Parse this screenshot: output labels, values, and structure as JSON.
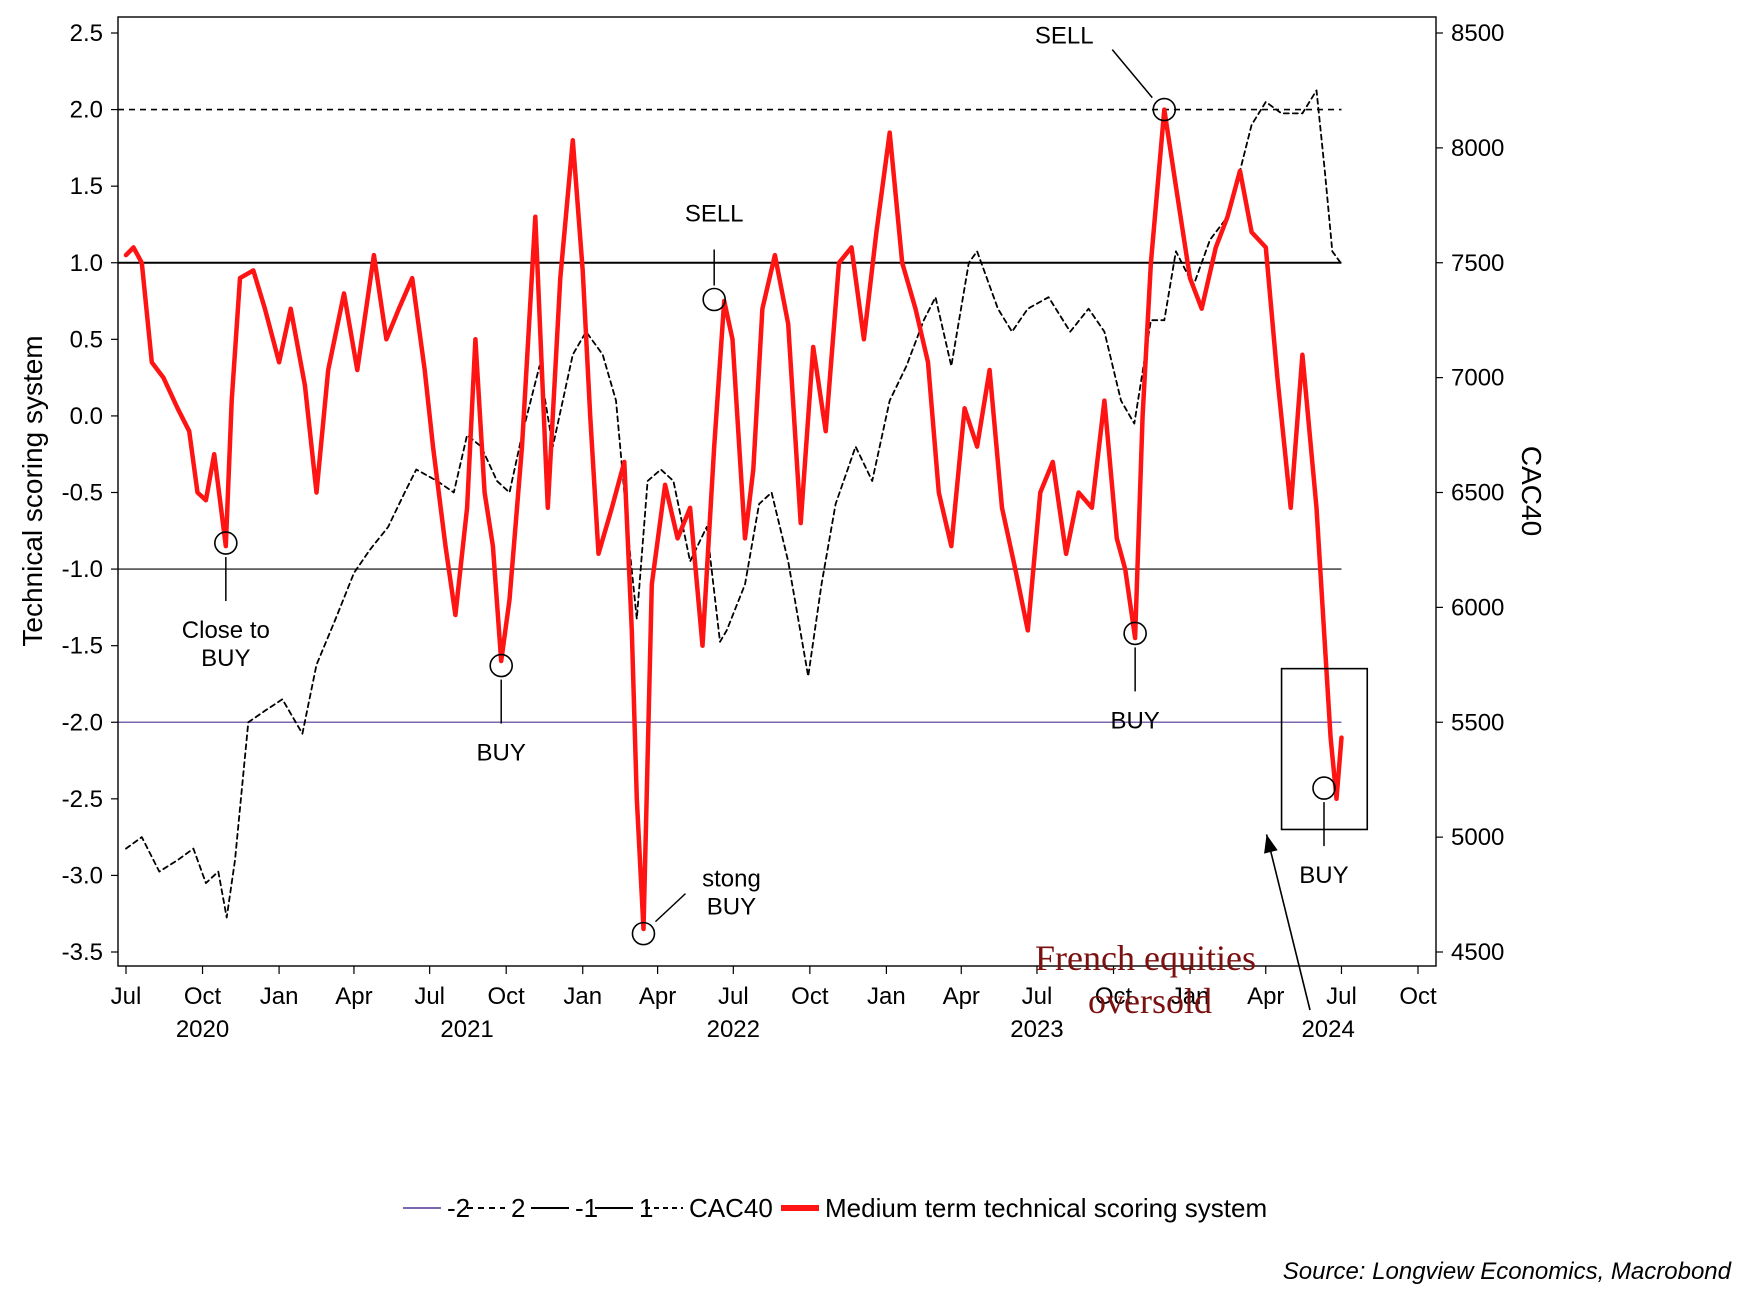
{
  "chart_data": {
    "type": "line",
    "ylabel": "Technical scoring system",
    "y2label": "CAC40",
    "source": "Source: Longview Economics, Macrobond",
    "callout": [
      "French equities",
      "oversold"
    ],
    "ylim": [
      -3.5,
      2.5
    ],
    "y2lim": [
      4500,
      8500
    ],
    "yticks": [
      "2.5",
      "2.0",
      "1.5",
      "1.0",
      "0.5",
      "0.0",
      "-0.5",
      "-1.0",
      "-1.5",
      "-2.0",
      "-2.5",
      "-3.0",
      "-3.5"
    ],
    "y2ticks": [
      "8500",
      "8000",
      "7500",
      "7000",
      "6500",
      "6000",
      "5500",
      "5000",
      "4500"
    ],
    "xlim": [
      "2020-07-01",
      "2024-10-01"
    ],
    "xticks": [
      {
        "date": "2020-07-01",
        "label": "Jul"
      },
      {
        "date": "2020-10-01",
        "label": "Oct"
      },
      {
        "date": "2021-01-01",
        "label": "Jan"
      },
      {
        "date": "2021-04-01",
        "label": "Apr"
      },
      {
        "date": "2021-07-01",
        "label": "Jul"
      },
      {
        "date": "2021-10-01",
        "label": "Oct"
      },
      {
        "date": "2022-01-01",
        "label": "Jan"
      },
      {
        "date": "2022-04-01",
        "label": "Apr"
      },
      {
        "date": "2022-07-01",
        "label": "Jul"
      },
      {
        "date": "2022-10-01",
        "label": "Oct"
      },
      {
        "date": "2023-01-01",
        "label": "Jan"
      },
      {
        "date": "2023-04-01",
        "label": "Apr"
      },
      {
        "date": "2023-07-01",
        "label": "Jul"
      },
      {
        "date": "2023-10-01",
        "label": "Oct"
      },
      {
        "date": "2024-01-01",
        "label": "Jan"
      },
      {
        "date": "2024-04-01",
        "label": "Apr"
      },
      {
        "date": "2024-07-01",
        "label": "Jul"
      },
      {
        "date": "2024-10-01",
        "label": "Oct"
      }
    ],
    "years": [
      {
        "date": "2020-10-01",
        "label": "2020"
      },
      {
        "date": "2021-08-15",
        "label": "2021"
      },
      {
        "date": "2022-07-01",
        "label": "2022"
      },
      {
        "date": "2023-07-01",
        "label": "2023"
      },
      {
        "date": "2024-06-15",
        "label": "2024"
      }
    ],
    "reference_lines": [
      {
        "name": "-2",
        "value": -2,
        "color": "#7b68b0",
        "dash": "",
        "width": 1.6
      },
      {
        "name": "2",
        "value": 2,
        "color": "#000000",
        "dash": "6,5",
        "width": 1.6
      },
      {
        "name": "-1",
        "value": -1,
        "color": "#000000",
        "dash": "",
        "width": 1.2
      },
      {
        "name": "1",
        "value": 1,
        "color": "#000000",
        "dash": "",
        "width": 2.0
      }
    ],
    "series": [
      {
        "name": "CAC40",
        "axis": "right",
        "color": "#000000",
        "dash": "5,4",
        "x": [
          "2020-07-01",
          "2020-07-20",
          "2020-08-10",
          "2020-09-01",
          "2020-09-20",
          "2020-10-05",
          "2020-10-20",
          "2020-10-30",
          "2020-11-09",
          "2020-11-25",
          "2020-12-15",
          "2021-01-05",
          "2021-01-29",
          "2021-02-15",
          "2021-03-10",
          "2021-04-01",
          "2021-04-20",
          "2021-05-12",
          "2021-06-01",
          "2021-06-15",
          "2021-07-10",
          "2021-07-30",
          "2021-08-15",
          "2021-09-01",
          "2021-09-20",
          "2021-10-05",
          "2021-10-20",
          "2021-11-10",
          "2021-11-26",
          "2021-12-20",
          "2022-01-05",
          "2022-01-25",
          "2022-02-10",
          "2022-02-25",
          "2022-03-07",
          "2022-03-20",
          "2022-04-05",
          "2022-04-20",
          "2022-05-10",
          "2022-05-30",
          "2022-06-15",
          "2022-06-23",
          "2022-07-15",
          "2022-08-01",
          "2022-08-16",
          "2022-09-05",
          "2022-09-29",
          "2022-10-15",
          "2022-11-01",
          "2022-11-25",
          "2022-12-15",
          "2023-01-05",
          "2023-01-25",
          "2023-02-15",
          "2023-03-01",
          "2023-03-20",
          "2023-04-10",
          "2023-04-20",
          "2023-05-15",
          "2023-06-01",
          "2023-06-20",
          "2023-07-15",
          "2023-08-10",
          "2023-09-01",
          "2023-09-20",
          "2023-10-10",
          "2023-10-26",
          "2023-11-15",
          "2023-12-01",
          "2023-12-15",
          "2024-01-05",
          "2024-01-25",
          "2024-02-15",
          "2024-03-01",
          "2024-03-15",
          "2024-04-01",
          "2024-04-20",
          "2024-05-15",
          "2024-06-01",
          "2024-06-11",
          "2024-06-20",
          "2024-06-30"
        ],
        "values": [
          4950,
          5000,
          4850,
          4900,
          4950,
          4800,
          4850,
          4650,
          4900,
          5500,
          5550,
          5600,
          5450,
          5750,
          5950,
          6150,
          6250,
          6350,
          6500,
          6600,
          6550,
          6500,
          6750,
          6700,
          6550,
          6500,
          6750,
          7050,
          6700,
          7100,
          7200,
          7100,
          6900,
          6300,
          5950,
          6550,
          6600,
          6550,
          6200,
          6350,
          5850,
          5900,
          6100,
          6450,
          6500,
          6200,
          5700,
          6100,
          6450,
          6700,
          6550,
          6900,
          7050,
          7250,
          7350,
          7050,
          7500,
          7550,
          7300,
          7200,
          7300,
          7350,
          7200,
          7300,
          7200,
          6900,
          6800,
          7250,
          7250,
          7550,
          7400,
          7600,
          7700,
          7900,
          8100,
          8200,
          8150,
          8150,
          8250,
          7900,
          7550,
          7500
        ]
      },
      {
        "name": "Medium term technical scoring system",
        "axis": "left",
        "color": "#ff1414",
        "dash": "",
        "x": [
          "2020-07-01",
          "2020-07-10",
          "2020-07-20",
          "2020-08-01",
          "2020-08-15",
          "2020-09-01",
          "2020-09-15",
          "2020-09-25",
          "2020-10-05",
          "2020-10-15",
          "2020-10-29",
          "2020-11-05",
          "2020-11-15",
          "2020-12-01",
          "2020-12-15",
          "2021-01-01",
          "2021-01-15",
          "2021-02-01",
          "2021-02-15",
          "2021-03-01",
          "2021-03-20",
          "2021-04-05",
          "2021-04-25",
          "2021-05-10",
          "2021-05-25",
          "2021-06-10",
          "2021-06-25",
          "2021-07-05",
          "2021-07-20",
          "2021-08-01",
          "2021-08-15",
          "2021-08-25",
          "2021-09-05",
          "2021-09-15",
          "2021-09-25",
          "2021-10-05",
          "2021-10-20",
          "2021-11-05",
          "2021-11-20",
          "2021-12-05",
          "2021-12-20",
          "2022-01-01",
          "2022-01-10",
          "2022-01-20",
          "2022-02-05",
          "2022-02-20",
          "2022-03-01",
          "2022-03-07",
          "2022-03-15",
          "2022-03-25",
          "2022-04-10",
          "2022-04-25",
          "2022-05-10",
          "2022-05-25",
          "2022-06-08",
          "2022-06-20",
          "2022-06-30",
          "2022-07-15",
          "2022-07-25",
          "2022-08-05",
          "2022-08-20",
          "2022-09-05",
          "2022-09-20",
          "2022-10-05",
          "2022-10-20",
          "2022-11-05",
          "2022-11-20",
          "2022-12-05",
          "2022-12-20",
          "2023-01-05",
          "2023-01-20",
          "2023-02-05",
          "2023-02-20",
          "2023-03-05",
          "2023-03-20",
          "2023-04-05",
          "2023-04-20",
          "2023-05-05",
          "2023-05-20",
          "2023-06-05",
          "2023-06-20",
          "2023-07-05",
          "2023-07-20",
          "2023-08-05",
          "2023-08-20",
          "2023-09-05",
          "2023-09-20",
          "2023-10-05",
          "2023-10-15",
          "2023-10-27",
          "2023-11-05",
          "2023-11-15",
          "2023-12-01",
          "2023-12-15",
          "2024-01-01",
          "2024-01-15",
          "2024-02-01",
          "2024-02-15",
          "2024-03-01",
          "2024-03-15",
          "2024-04-01",
          "2024-04-15",
          "2024-05-01",
          "2024-05-15",
          "2024-06-01",
          "2024-06-10",
          "2024-06-18",
          "2024-06-25",
          "2024-07-01"
        ],
        "values": [
          1.05,
          1.1,
          1.0,
          0.35,
          0.25,
          0.05,
          -0.1,
          -0.5,
          -0.55,
          -0.25,
          -0.85,
          0.1,
          0.9,
          0.95,
          0.7,
          0.35,
          0.7,
          0.2,
          -0.5,
          0.3,
          0.8,
          0.3,
          1.05,
          0.5,
          0.7,
          0.9,
          0.3,
          -0.2,
          -0.85,
          -1.3,
          -0.6,
          0.5,
          -0.5,
          -0.85,
          -1.6,
          -1.2,
          -0.2,
          1.3,
          -0.6,
          0.9,
          1.8,
          0.95,
          0.0,
          -0.9,
          -0.6,
          -0.3,
          -1.4,
          -2.5,
          -3.35,
          -1.1,
          -0.45,
          -0.8,
          -0.6,
          -1.5,
          -0.2,
          0.75,
          0.5,
          -0.8,
          -0.35,
          0.7,
          1.05,
          0.6,
          -0.7,
          0.45,
          -0.1,
          1.0,
          1.1,
          0.5,
          1.2,
          1.85,
          1.0,
          0.7,
          0.35,
          -0.5,
          -0.85,
          0.05,
          -0.2,
          0.3,
          -0.6,
          -1.0,
          -1.4,
          -0.5,
          -0.3,
          -0.9,
          -0.5,
          -0.6,
          0.1,
          -0.8,
          -1.0,
          -1.45,
          0.0,
          1.0,
          2.0,
          1.5,
          0.9,
          0.7,
          1.1,
          1.3,
          1.6,
          1.2,
          1.1,
          0.25,
          -0.6,
          0.4,
          -0.6,
          -1.4,
          -2.1,
          -2.5,
          -2.1
        ]
      }
    ],
    "annotations": [
      {
        "text": [
          "Close to",
          "BUY"
        ],
        "date": "2020-10-29",
        "value": -0.83,
        "dir": "down"
      },
      {
        "text": [
          "BUY"
        ],
        "date": "2021-09-25",
        "value": -1.63,
        "dir": "down"
      },
      {
        "text": [
          "stong",
          "BUY"
        ],
        "date": "2022-03-15",
        "value": -3.38,
        "dir": "upright"
      },
      {
        "text": [
          "SELL"
        ],
        "date": "2022-06-08",
        "value": 0.76,
        "dir": "up"
      },
      {
        "text": [
          "SELL"
        ],
        "date": "2023-12-01",
        "value": 2.0,
        "dir": "upleft"
      },
      {
        "text": [
          "BUY"
        ],
        "date": "2023-10-27",
        "value": -1.42,
        "dir": "down"
      },
      {
        "text": [
          "BUY"
        ],
        "date": "2024-06-10",
        "value": -2.43,
        "dir": "down"
      }
    ],
    "highlight_box": {
      "date_start": "2024-04-20",
      "date_end": "2024-08-01",
      "value_top": -1.65,
      "value_bottom": -2.7
    }
  }
}
